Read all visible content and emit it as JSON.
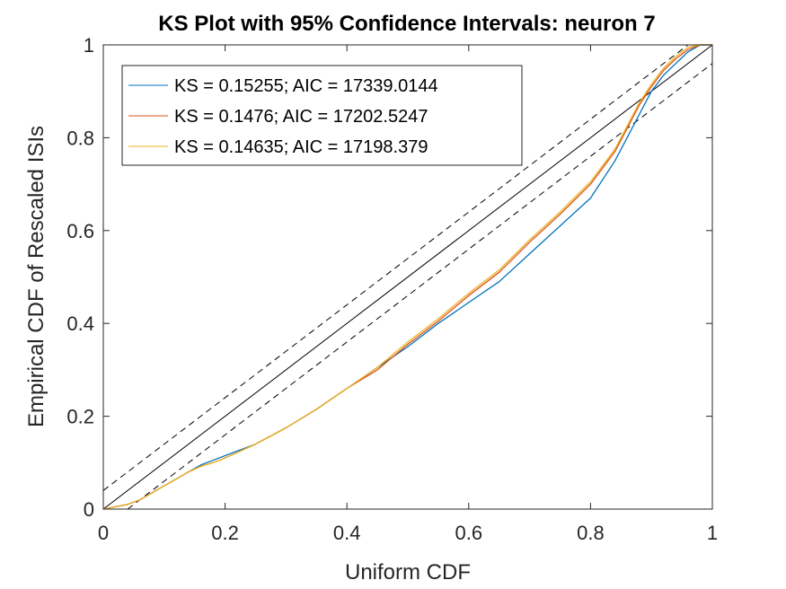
{
  "chart_data": {
    "type": "line",
    "title": "KS Plot with 95% Confidence Intervals: neuron 7",
    "xlabel": "Uniform CDF",
    "ylabel": "Empirical CDF of Rescaled ISIs",
    "xlim": [
      0,
      1
    ],
    "ylim": [
      0,
      1
    ],
    "xticks": [
      "0",
      "0.2",
      "0.4",
      "0.6",
      "0.8",
      "1"
    ],
    "yticks": [
      "0",
      "0.2",
      "0.4",
      "0.6",
      "0.8",
      "1"
    ],
    "legend_position": "top-left",
    "reference": {
      "diagonal": [
        [
          0,
          0
        ],
        [
          1,
          1
        ]
      ],
      "upper_bound": [
        [
          0,
          0.04
        ],
        [
          0.96,
          1
        ]
      ],
      "lower_bound": [
        [
          0.04,
          0
        ],
        [
          1,
          0.96
        ]
      ]
    },
    "series": [
      {
        "name": "KS = 0.15255; AIC = 17339.0144",
        "color": "#0072BD",
        "x": [
          0,
          0.02,
          0.04,
          0.06,
          0.08,
          0.1,
          0.12,
          0.14,
          0.16,
          0.18,
          0.2,
          0.25,
          0.3,
          0.35,
          0.4,
          0.45,
          0.5,
          0.55,
          0.6,
          0.65,
          0.7,
          0.75,
          0.8,
          0.84,
          0.86,
          0.88,
          0.9,
          0.92,
          0.94,
          0.96,
          0.98,
          1.0
        ],
        "y": [
          0,
          0.005,
          0.01,
          0.02,
          0.035,
          0.05,
          0.065,
          0.08,
          0.095,
          0.105,
          0.115,
          0.14,
          0.175,
          0.215,
          0.26,
          0.305,
          0.35,
          0.4,
          0.445,
          0.49,
          0.55,
          0.61,
          0.67,
          0.75,
          0.8,
          0.85,
          0.9,
          0.935,
          0.96,
          0.985,
          1.0,
          1.0
        ]
      },
      {
        "name": "KS = 0.1476; AIC = 17202.5247",
        "color": "#D95319",
        "x": [
          0,
          0.02,
          0.04,
          0.06,
          0.08,
          0.1,
          0.12,
          0.14,
          0.16,
          0.18,
          0.2,
          0.25,
          0.3,
          0.35,
          0.4,
          0.45,
          0.5,
          0.55,
          0.6,
          0.65,
          0.7,
          0.75,
          0.8,
          0.84,
          0.86,
          0.88,
          0.9,
          0.92,
          0.94,
          0.96,
          0.98,
          1.0
        ],
        "y": [
          0,
          0.005,
          0.01,
          0.02,
          0.035,
          0.05,
          0.065,
          0.08,
          0.092,
          0.1,
          0.11,
          0.14,
          0.175,
          0.215,
          0.26,
          0.3,
          0.355,
          0.405,
          0.46,
          0.51,
          0.575,
          0.635,
          0.7,
          0.77,
          0.82,
          0.87,
          0.91,
          0.945,
          0.97,
          0.99,
          1.0,
          1.0
        ]
      },
      {
        "name": "KS = 0.14635; AIC = 17198.379",
        "color": "#EDB120",
        "x": [
          0,
          0.02,
          0.04,
          0.06,
          0.08,
          0.1,
          0.12,
          0.14,
          0.16,
          0.18,
          0.2,
          0.25,
          0.3,
          0.35,
          0.4,
          0.45,
          0.5,
          0.55,
          0.6,
          0.65,
          0.7,
          0.75,
          0.8,
          0.84,
          0.86,
          0.88,
          0.9,
          0.92,
          0.94,
          0.96,
          0.98,
          1.0
        ],
        "y": [
          0,
          0.005,
          0.01,
          0.02,
          0.035,
          0.05,
          0.065,
          0.08,
          0.092,
          0.1,
          0.11,
          0.14,
          0.175,
          0.215,
          0.26,
          0.305,
          0.36,
          0.41,
          0.465,
          0.515,
          0.58,
          0.64,
          0.705,
          0.775,
          0.825,
          0.875,
          0.915,
          0.95,
          0.975,
          0.995,
          1.0,
          1.0
        ]
      }
    ]
  }
}
